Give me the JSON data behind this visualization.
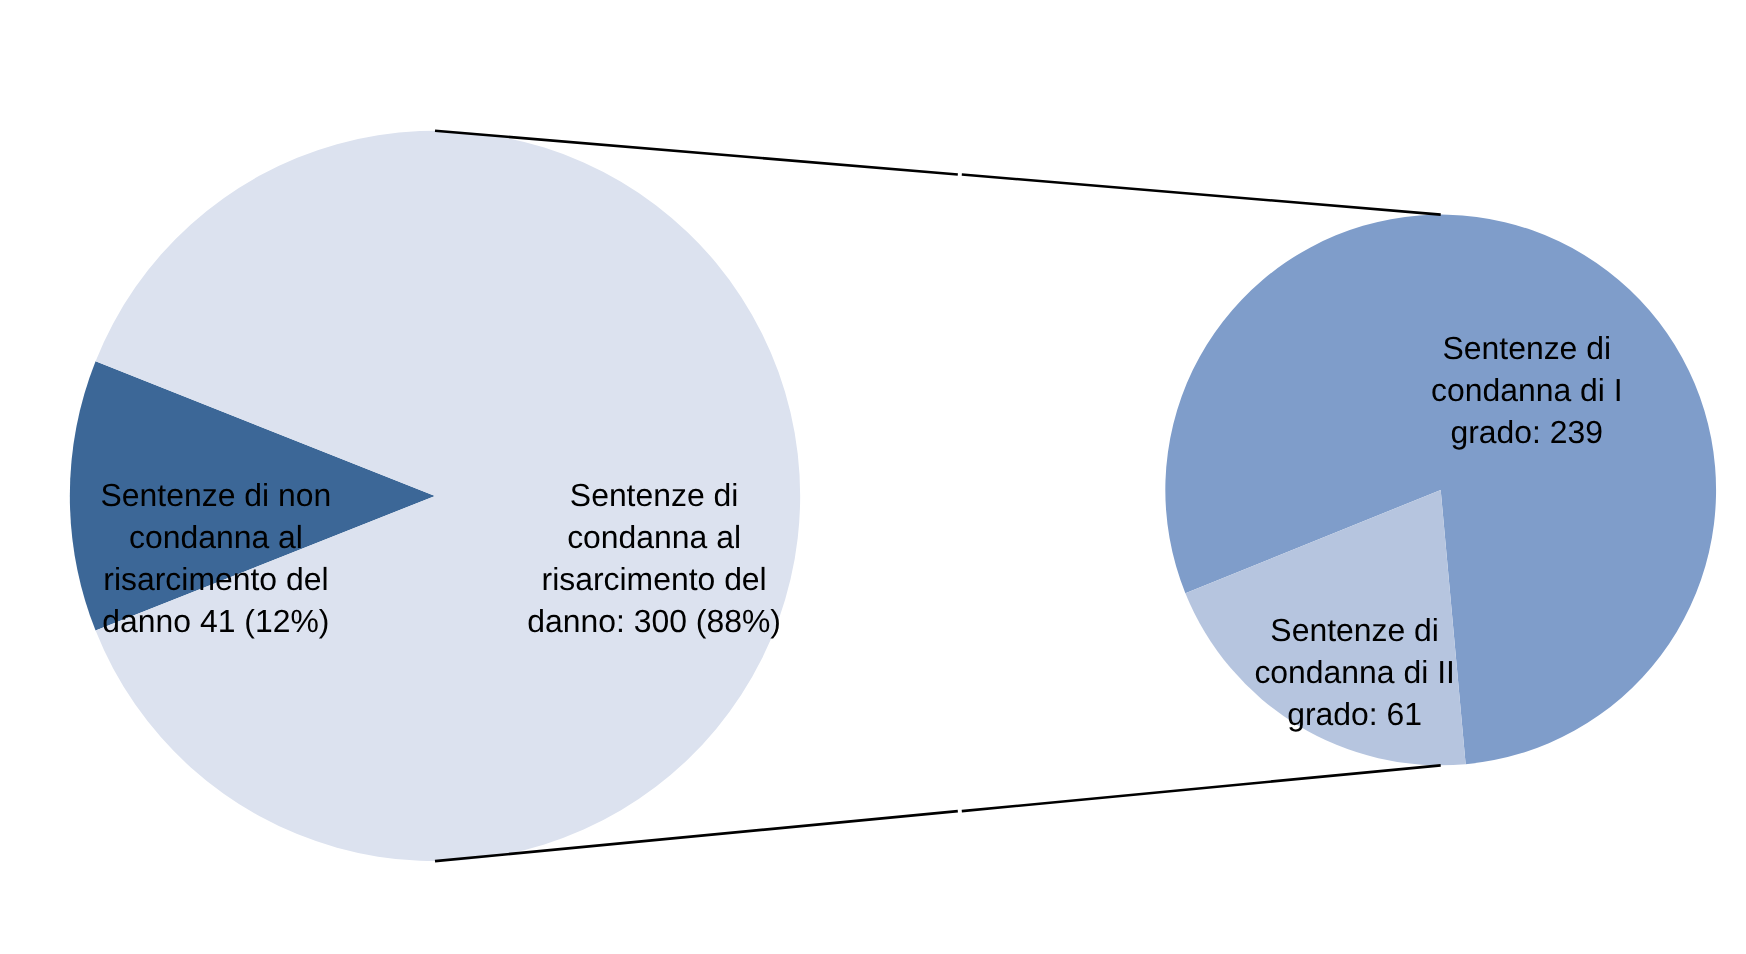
{
  "chart_data": [
    {
      "type": "pie",
      "categories": [
        "Sentenze di non condanna  al risarcimento del danno",
        "Sentenze di condanna al risarcimento del danno"
      ],
      "values": [
        41,
        300
      ],
      "colors": [
        "#3c6797",
        "#dce2ef"
      ],
      "value_labels": [
        "  41 (12%)",
        ": 300 (88%)"
      ]
    },
    {
      "type": "pie",
      "categories": [
        "Sentenze di condanna di I grado",
        "Sentenze di condanna di II grado"
      ],
      "values": [
        239,
        61
      ],
      "colors": [
        "#7f9dca",
        "#b6c5df"
      ],
      "value_labels": [
        ": 239",
        ": 61"
      ]
    }
  ]
}
